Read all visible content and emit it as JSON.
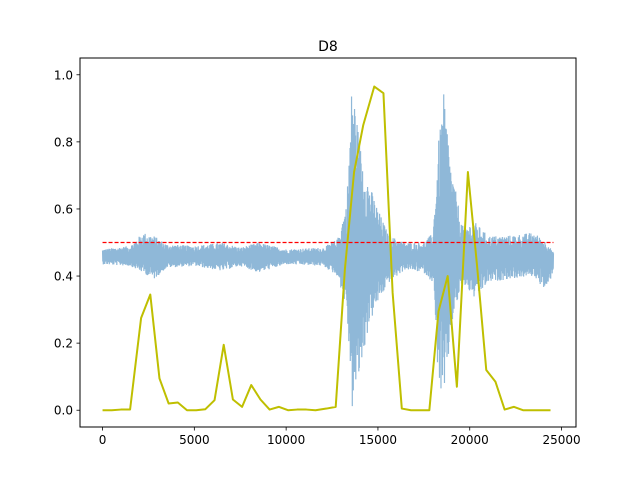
{
  "chart_data": {
    "type": "line",
    "title": "D8",
    "xlabel": "",
    "ylabel": "",
    "xlim": [
      -1228,
      25788
    ],
    "ylim": [
      -0.05,
      1.05
    ],
    "xticks": [
      0,
      5000,
      10000,
      15000,
      20000,
      25000
    ],
    "yticks": [
      0.0,
      0.2,
      0.4,
      0.6,
      0.8,
      1.0
    ],
    "xtick_labels": [
      "0",
      "5000",
      "10000",
      "15000",
      "20000",
      "25000"
    ],
    "ytick_labels": [
      "0.0",
      "0.2",
      "0.4",
      "0.6",
      "0.8",
      "1.0"
    ],
    "grid": false,
    "legend": "none",
    "colors": {
      "signal": "#8fb8d8",
      "energy": "#bfbf00",
      "threshold": "#ff0000"
    },
    "series": [
      {
        "role": "signal",
        "x_range": [
          0,
          24560
        ],
        "baseline": 0.458,
        "envelope": [
          {
            "x": 0,
            "lo": 0.435,
            "hi": 0.48
          },
          {
            "x": 1500,
            "lo": 0.43,
            "hi": 0.49
          },
          {
            "x": 2200,
            "lo": 0.41,
            "hi": 0.53
          },
          {
            "x": 2800,
            "lo": 0.39,
            "hi": 0.52
          },
          {
            "x": 3500,
            "lo": 0.425,
            "hi": 0.495
          },
          {
            "x": 5000,
            "lo": 0.43,
            "hi": 0.49
          },
          {
            "x": 6500,
            "lo": 0.415,
            "hi": 0.5
          },
          {
            "x": 7500,
            "lo": 0.43,
            "hi": 0.485
          },
          {
            "x": 8500,
            "lo": 0.41,
            "hi": 0.5
          },
          {
            "x": 10000,
            "lo": 0.435,
            "hi": 0.48
          },
          {
            "x": 12000,
            "lo": 0.43,
            "hi": 0.485
          },
          {
            "x": 12800,
            "lo": 0.4,
            "hi": 0.51
          },
          {
            "x": 13300,
            "lo": 0.3,
            "hi": 0.62
          },
          {
            "x": 13600,
            "lo": 0.0,
            "hi": 1.0
          },
          {
            "x": 14000,
            "lo": 0.1,
            "hi": 0.8
          },
          {
            "x": 14500,
            "lo": 0.25,
            "hi": 0.68
          },
          {
            "x": 15000,
            "lo": 0.32,
            "hi": 0.6
          },
          {
            "x": 15600,
            "lo": 0.38,
            "hi": 0.52
          },
          {
            "x": 16500,
            "lo": 0.42,
            "hi": 0.5
          },
          {
            "x": 17500,
            "lo": 0.41,
            "hi": 0.5
          },
          {
            "x": 18000,
            "lo": 0.38,
            "hi": 0.53
          },
          {
            "x": 18300,
            "lo": 0.08,
            "hi": 0.8
          },
          {
            "x": 18600,
            "lo": 0.0,
            "hi": 0.95
          },
          {
            "x": 19000,
            "lo": 0.25,
            "hi": 0.72
          },
          {
            "x": 19600,
            "lo": 0.38,
            "hi": 0.55
          },
          {
            "x": 20300,
            "lo": 0.33,
            "hi": 0.56
          },
          {
            "x": 21000,
            "lo": 0.38,
            "hi": 0.52
          },
          {
            "x": 22000,
            "lo": 0.39,
            "hi": 0.52
          },
          {
            "x": 23500,
            "lo": 0.4,
            "hi": 0.53
          },
          {
            "x": 24200,
            "lo": 0.35,
            "hi": 0.5
          },
          {
            "x": 24560,
            "lo": 0.42,
            "hi": 0.47
          }
        ]
      },
      {
        "role": "energy",
        "x": [
          0,
          500,
          1000,
          1500,
          2100,
          2600,
          3100,
          3600,
          4100,
          4600,
          5100,
          5600,
          6100,
          6600,
          7100,
          7600,
          8100,
          8600,
          9100,
          9600,
          10100,
          10600,
          11100,
          11600,
          12200,
          12700,
          13200,
          13700,
          14200,
          14800,
          15300,
          15800,
          16300,
          16800,
          17300,
          17800,
          18300,
          18800,
          19300,
          19900,
          20400,
          20900,
          21400,
          21900,
          22400,
          22900,
          23400,
          23900,
          24400
        ],
        "y": [
          0.0,
          0.0,
          0.002,
          0.002,
          0.275,
          0.345,
          0.095,
          0.02,
          0.023,
          0.0,
          0.0,
          0.003,
          0.03,
          0.195,
          0.032,
          0.01,
          0.075,
          0.032,
          0.002,
          0.01,
          0.0,
          0.002,
          0.002,
          0.0,
          0.005,
          0.01,
          0.42,
          0.71,
          0.85,
          0.965,
          0.945,
          0.35,
          0.005,
          0.0,
          0.0,
          0.0,
          0.295,
          0.4,
          0.07,
          0.71,
          0.43,
          0.12,
          0.085,
          0.002,
          0.01,
          0.0,
          0.0,
          0.0,
          0.0
        ]
      },
      {
        "role": "threshold",
        "x": [
          0,
          24560
        ],
        "y": [
          0.5,
          0.5
        ]
      }
    ]
  }
}
